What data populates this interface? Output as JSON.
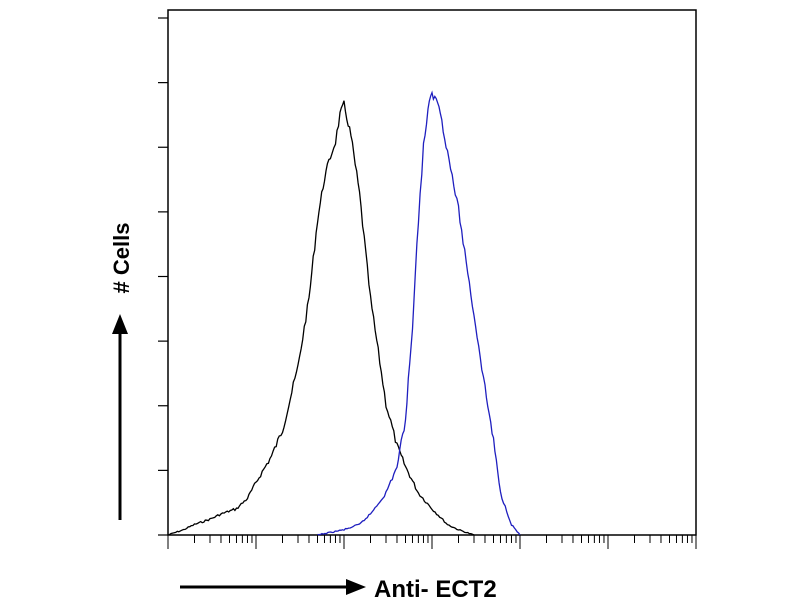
{
  "chart_data": {
    "type": "line",
    "title": "",
    "xlabel": "Anti- ECT2",
    "ylabel": "# Cells",
    "x_scale": "log",
    "xlim": [
      1,
      1000000
    ],
    "ylim": [
      0,
      100
    ],
    "grid": false,
    "legend": "none",
    "series": [
      {
        "color": "#000000",
        "x": [
          1,
          1.5,
          2,
          3,
          4,
          6,
          8,
          10,
          15,
          20,
          30,
          40,
          50,
          60,
          70,
          80,
          90,
          100,
          120,
          150,
          200,
          300,
          400,
          500,
          700,
          1000,
          1500,
          2000,
          3000
        ],
        "y": [
          0,
          1,
          2,
          3,
          4,
          5,
          7,
          10,
          15,
          20,
          32,
          45,
          60,
          68,
          72,
          75,
          80,
          82,
          76,
          65,
          45,
          25,
          17,
          13,
          8,
          5,
          2,
          1,
          0
        ]
      },
      {
        "color": "#1f1fbf",
        "x": [
          50,
          100,
          150,
          200,
          300,
          400,
          500,
          600,
          700,
          800,
          900,
          1000,
          1200,
          1500,
          2000,
          3000,
          4000,
          5000,
          6000,
          8000,
          10000
        ],
        "y": [
          0,
          1,
          2,
          4,
          8,
          13,
          22,
          40,
          60,
          74,
          81,
          84,
          82,
          73,
          62,
          42,
          28,
          18,
          8,
          2,
          0
        ]
      }
    ]
  }
}
